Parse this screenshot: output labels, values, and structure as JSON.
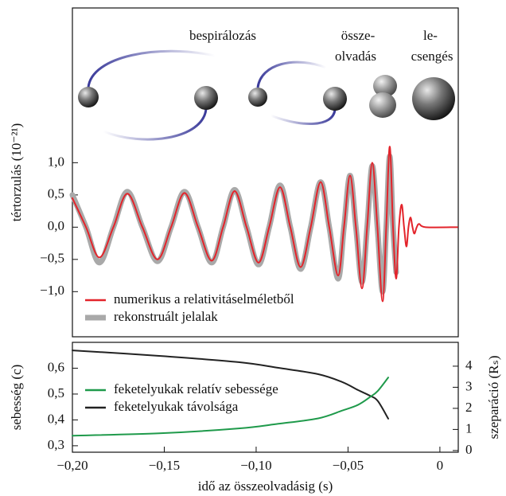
{
  "annotations": [
    "bespirálozás",
    "össze-",
    "olvadás",
    "le-",
    "csengés"
  ],
  "chart_data": [
    {
      "type": "line",
      "ylabel": "tértorzulás (10⁻²¹)",
      "xlim": [
        -0.2,
        0.01
      ],
      "ylim": [
        -1.7,
        3.4
      ],
      "yticks": [
        {
          "value": 1.0,
          "label": "1,0"
        },
        {
          "value": 0.5,
          "label": "0,5"
        },
        {
          "value": 0,
          "label": "0,0"
        },
        {
          "value": -0.5,
          "label": "−0,5"
        },
        {
          "value": -1.0,
          "label": "−1,0"
        }
      ],
      "legend": "lower left",
      "x": [
        -0.2,
        -0.1926,
        -0.1853,
        -0.1777,
        -0.1701,
        -0.1619,
        -0.1537,
        -0.1463,
        -0.139,
        -0.1316,
        -0.1242,
        -0.118,
        -0.1117,
        -0.1052,
        -0.0987,
        -0.0929,
        -0.087,
        -0.0814,
        -0.0758,
        -0.0703,
        -0.0649,
        -0.0602,
        -0.0554,
        -0.0522,
        -0.0489,
        -0.0457,
        -0.0424,
        -0.0396,
        -0.0368,
        -0.034,
        -0.0312,
        -0.0292,
        -0.0273,
        -0.0255,
        -0.0238,
        -0.0223,
        -0.0208,
        -0.0195,
        -0.0182,
        -0.0171,
        -0.016,
        -0.0149,
        -0.0139,
        -0.0126,
        -0.0113,
        -0.0078,
        0.0095
      ],
      "series": [
        {
          "name": "rekonstruált jelalak",
          "color": "#a9a9a9",
          "width": 7,
          "values": [
            0.5,
            0,
            -0.55,
            0,
            0.55,
            0,
            -0.53,
            0,
            0.55,
            0,
            -0.55,
            0,
            0.58,
            0,
            -0.58,
            0,
            0.65,
            0,
            -0.65,
            0,
            0.7,
            0,
            -0.8,
            0,
            0.8,
            0,
            -0.85,
            0,
            0.95,
            0,
            -1.0,
            0,
            1.1,
            0,
            -0.7,
            null,
            null,
            null,
            null,
            null,
            null,
            null,
            null,
            null,
            null,
            null,
            null
          ]
        },
        {
          "name": "numerikus a relativitáselméletből",
          "color": "#e3242b",
          "width": 2,
          "values": [
            0.45,
            0,
            -0.47,
            0,
            0.52,
            0,
            -0.5,
            0,
            0.53,
            0,
            -0.52,
            0,
            0.56,
            0,
            -0.55,
            0,
            0.62,
            0,
            -0.62,
            0,
            0.7,
            0,
            -0.75,
            0,
            0.8,
            0,
            -0.95,
            0,
            1.0,
            0,
            -1.15,
            0,
            1.25,
            0,
            -0.8,
            0,
            0.35,
            0,
            -0.3,
            0,
            0.15,
            0,
            -0.1,
            0,
            0.05,
            0,
            0
          ]
        }
      ]
    },
    {
      "type": "line",
      "ylabel": "sebesség (c)",
      "y2label": "szeparáció (Rₛ)",
      "xlabel": "idő az összeolvadásig (s)",
      "xlim": [
        -0.2,
        0.01
      ],
      "ylim": [
        0.275,
        0.7
      ],
      "y2lim": [
        -0.08,
        5.13
      ],
      "xticks": [
        {
          "value": -0.2,
          "label": "−0,20"
        },
        {
          "value": -0.15,
          "label": "−0,15"
        },
        {
          "value": -0.1,
          "label": "−0,10"
        },
        {
          "value": -0.05,
          "label": "−0,05"
        },
        0
      ],
      "yticks": [
        {
          "value": 0.3,
          "label": "0,3"
        },
        {
          "value": 0.4,
          "label": "0,4"
        },
        {
          "value": 0.5,
          "label": "0,5"
        },
        {
          "value": 0.6,
          "label": "0,6"
        }
      ],
      "y2ticks": [
        0,
        1,
        2,
        3,
        4
      ],
      "legend": "center left",
      "x": [
        -0.2,
        -0.1528,
        -0.1095,
        -0.0879,
        -0.0662,
        -0.0532,
        -0.0446,
        -0.0381,
        -0.0338,
        -0.0281
      ],
      "series": [
        {
          "name": "feketelyukak távolsága",
          "color": "#222222",
          "width": 2,
          "axis": "y2",
          "values": [
            4.75,
            4.49,
            4.19,
            3.92,
            3.62,
            3.25,
            2.87,
            2.6,
            2.35,
            1.51
          ]
        },
        {
          "name": "feketelyukak relatív sebessége",
          "color": "#1f9a4b",
          "width": 2,
          "values": [
            0.339,
            0.348,
            0.367,
            0.385,
            0.406,
            0.436,
            0.458,
            0.488,
            0.512,
            0.564
          ]
        }
      ]
    }
  ]
}
